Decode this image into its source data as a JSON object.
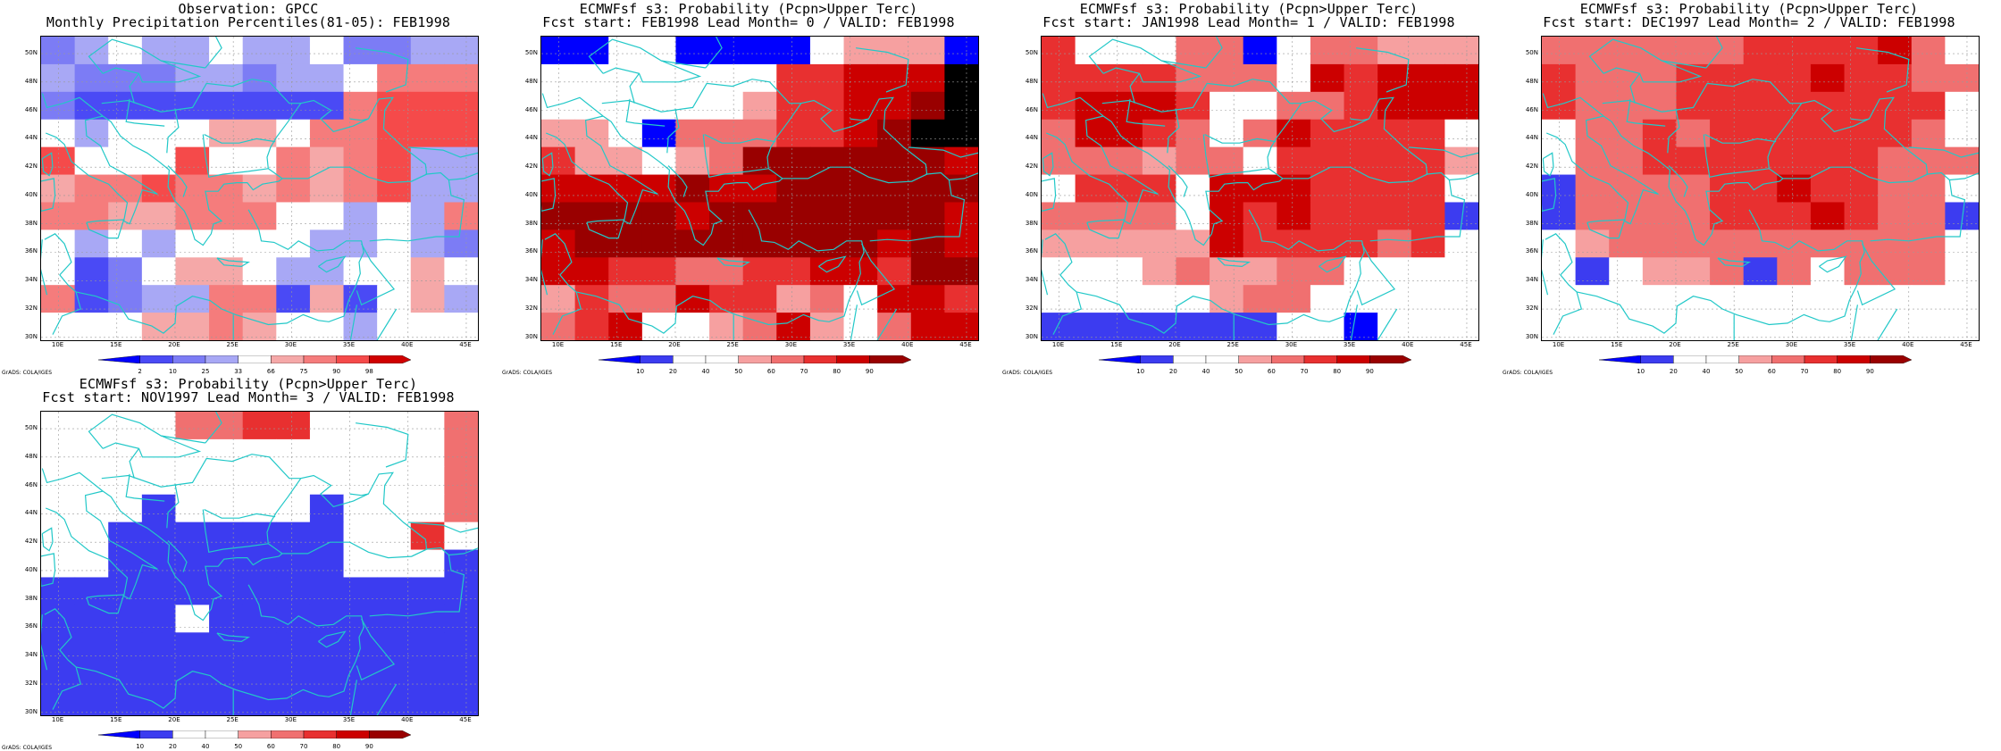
{
  "map_data": {
    "lon_ticks": [
      "10E",
      "15E",
      "20E",
      "25E",
      "30E",
      "35E",
      "40E",
      "45E"
    ],
    "lat_ticks": [
      "30N",
      "32N",
      "34N",
      "36N",
      "38N",
      "40N",
      "42N",
      "44N",
      "46N",
      "48N",
      "50N"
    ],
    "coastline_color": "#22c8c8",
    "grid_color": "#999999"
  },
  "credit": "GrADS: COLA/IGES",
  "scale_obs": {
    "labels": [
      "2",
      "10",
      "25",
      "33",
      "66",
      "75",
      "90",
      "98"
    ],
    "colors": [
      "#0000ff",
      "#4a4af5",
      "#7c7cf5",
      "#a8a8f5",
      "#ffffff",
      "#f5a8a8",
      "#f57c7c",
      "#f54a4a",
      "#d00000"
    ]
  },
  "scale_prob": {
    "labels": [
      "10",
      "20",
      "40",
      "50",
      "60",
      "70",
      "80",
      "90"
    ],
    "colors": [
      "#0000ff",
      "#3c3cf0",
      "#ffffff",
      "#ffffff",
      "#f6a0a0",
      "#f07070",
      "#e83030",
      "#cc0000",
      "#990000"
    ]
  },
  "panels": [
    {
      "id": "obs",
      "title1": "Observation: GPCC",
      "title2": "Monthly Precipitation Percentiles(81-05): FEB1998",
      "scale": "scale_obs",
      "grid": [
        "2343343342233",
        "3222332334666",
        "2111111116777",
        "4344455466777",
        "7444744656733",
        "5667665656733",
        "6655666443436",
        "4343444433432",
        "4124554334454",
        "6123366151453",
        "4445565443444"
      ]
    },
    {
      "id": "lead0",
      "title1": "ECMWFsf s3: Probability (Pcpn>Upper Terc)",
      "title2": "Fcst start: FEB1998  Lead Month= 0 / VALID: FEB1998",
      "scale": "scale_prob",
      "grid": [
        "0033000034440",
        "3333333667779",
        "3333334667789",
        "4430555667899",
        "6443458888887",
        "7777877888888",
        "8888788888887",
        "7888888888787",
        "7766556677688",
        "4655766453776",
        "5673345743577"
      ]
    },
    {
      "id": "lead1",
      "title1": "ECMWFsf s3: Probability (Pcpn>Upper Terc)",
      "title2": "Fcst start: JAN1998  Lead Month= 1 / VALID: FEB1998",
      "scale": "scale_prob",
      "grid": [
        "6333550355444",
        "6666555376777",
        "6777633556777",
        "5776535766663",
        "5554553666664",
        "3666377766663",
        "5555376766661",
        "4444476666563",
        "3334544553333",
        "2233345522322",
        "1111111220333"
      ]
    },
    {
      "id": "lead2",
      "title1": "ECMWFsf s3: Probability (Pcpn>Upper Terc)",
      "title2": "Fcst start: DEC1997  Lead Month= 2 / VALID: FEB1998",
      "scale": "scale_prob",
      "grid": [
        "5555556666753",
        "6555666676655",
        "6555666666663",
        "3556566666653",
        "3556666666555",
        "1555566766553",
        "1555566676551",
        "3455555555553",
        "3134451535552",
        "2223333333333",
        "2223323333322"
      ]
    },
    {
      "id": "lead3",
      "title1": "ECMWFsf s3: Probability (Pcpn>Upper Terc)",
      "title2": "Fcst start: NOV1997  Lead Month= 3 / VALID: FEB1998",
      "scale": "scale_prob",
      "grid": [
        "3333556633335",
        "3333333333335",
        "3333333333335",
        "3331333313335",
        "3311111113363",
        "3311111113331",
        "1111111111111",
        "1111311111111",
        "1111111111111",
        "1111111111111",
        "1111111111111"
      ]
    }
  ]
}
